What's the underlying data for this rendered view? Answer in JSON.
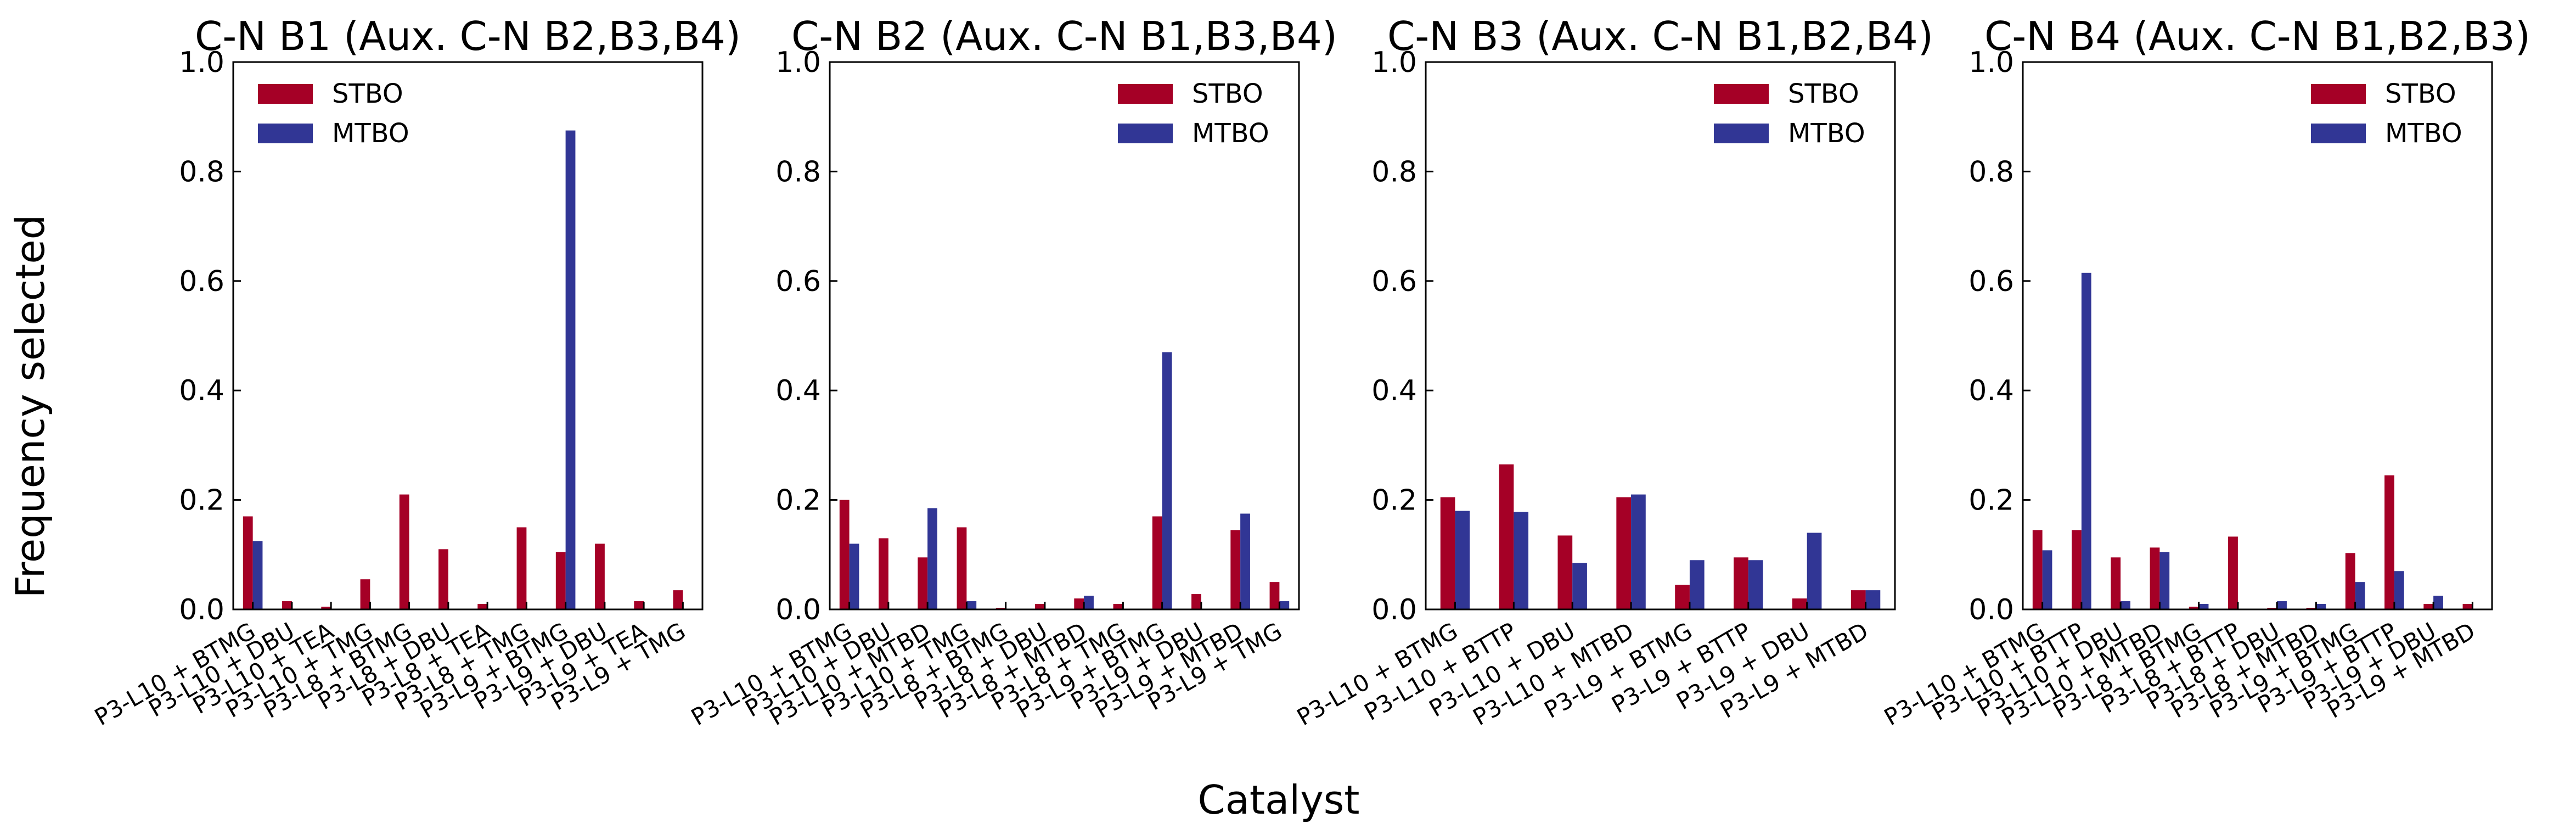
{
  "figure": {
    "ylabel": "Frequency selected",
    "xlabel": "Catalyst"
  },
  "colors": {
    "STBO": "#a50026",
    "MTBO": "#313695"
  },
  "chart_data": [
    {
      "type": "bar",
      "title": "C-N B1 (Aux. C-N B2,B3,B4)",
      "ylim": [
        0,
        1.0
      ],
      "yticks": [
        "0.0",
        "0.2",
        "0.4",
        "0.6",
        "0.8",
        "1.0"
      ],
      "legend_position": "top-left",
      "categories": [
        "P3-L10 + BTMG",
        "P3-L10 + DBU",
        "P3-L10 + TEA",
        "P3-L10 + TMG",
        "P3-L8 + BTMG",
        "P3-L8 + DBU",
        "P3-L8 + TEA",
        "P3-L8 + TMG",
        "P3-L9 + BTMG",
        "P3-L9 + DBU",
        "P3-L9 + TEA",
        "P3-L9 + TMG"
      ],
      "series": [
        {
          "name": "STBO",
          "values": [
            0.17,
            0.015,
            0.005,
            0.055,
            0.21,
            0.11,
            0.01,
            0.15,
            0.105,
            0.12,
            0.015,
            0.035
          ]
        },
        {
          "name": "MTBO",
          "values": [
            0.125,
            0.0,
            0.0,
            0.0,
            0.0,
            0.0,
            0.0,
            0.0,
            0.875,
            0.0,
            0.0,
            0.0
          ]
        }
      ]
    },
    {
      "type": "bar",
      "title": "C-N B2 (Aux. C-N B1,B3,B4)",
      "ylim": [
        0,
        1.0
      ],
      "yticks": [
        "0.0",
        "0.2",
        "0.4",
        "0.6",
        "0.8",
        "1.0"
      ],
      "legend_position": "top-right",
      "categories": [
        "P3-L10 + BTMG",
        "P3-L10 + DBU",
        "P3-L10 + MTBD",
        "P3-L10 + TMG",
        "P3-L8 + BTMG",
        "P3-L8 + DBU",
        "P3-L8 + MTBD",
        "P3-L8 + TMG",
        "P3-L9 + BTMG",
        "P3-L9 + DBU",
        "P3-L9 + MTBD",
        "P3-L9 + TMG"
      ],
      "series": [
        {
          "name": "STBO",
          "values": [
            0.2,
            0.13,
            0.095,
            0.15,
            0.003,
            0.01,
            0.02,
            0.01,
            0.17,
            0.028,
            0.145,
            0.05
          ]
        },
        {
          "name": "MTBO",
          "values": [
            0.12,
            0.0,
            0.185,
            0.015,
            0.0,
            0.0,
            0.025,
            0.0,
            0.47,
            0.0,
            0.175,
            0.015
          ]
        }
      ]
    },
    {
      "type": "bar",
      "title": "C-N B3 (Aux. C-N B1,B2,B4)",
      "ylim": [
        0,
        1.0
      ],
      "yticks": [
        "0.0",
        "0.2",
        "0.4",
        "0.6",
        "0.8",
        "1.0"
      ],
      "legend_position": "top-right",
      "categories": [
        "P3-L10 + BTMG",
        "P3-L10 + BTTP",
        "P3-L10 + DBU",
        "P3-L10 + MTBD",
        "P3-L9 + BTMG",
        "P3-L9 + BTTP",
        "P3-L9 + DBU",
        "P3-L9 + MTBD"
      ],
      "series": [
        {
          "name": "STBO",
          "values": [
            0.205,
            0.265,
            0.135,
            0.205,
            0.045,
            0.095,
            0.02,
            0.035
          ]
        },
        {
          "name": "MTBO",
          "values": [
            0.18,
            0.178,
            0.085,
            0.21,
            0.09,
            0.09,
            0.14,
            0.035
          ]
        }
      ]
    },
    {
      "type": "bar",
      "title": "C-N B4 (Aux. C-N B1,B2,B3)",
      "ylim": [
        0,
        1.0
      ],
      "yticks": [
        "0.0",
        "0.2",
        "0.4",
        "0.6",
        "0.8",
        "1.0"
      ],
      "legend_position": "top-right",
      "categories": [
        "P3-L10 + BTMG",
        "P3-L10 + BTTP",
        "P3-L10 + DBU",
        "P3-L10 + MTBD",
        "P3-L8 + BTMG",
        "P3-L8 + BTTP",
        "P3-L8 + DBU",
        "P3-L8 + MTBD",
        "P3-L9 + BTMG",
        "P3-L9 + BTTP",
        "P3-L9 + DBU",
        "P3-L9 + MTBD"
      ],
      "series": [
        {
          "name": "STBO",
          "values": [
            0.145,
            0.145,
            0.095,
            0.113,
            0.005,
            0.133,
            0.003,
            0.003,
            0.103,
            0.245,
            0.01,
            0.01
          ]
        },
        {
          "name": "MTBO",
          "values": [
            0.108,
            0.615,
            0.015,
            0.105,
            0.01,
            0.0,
            0.015,
            0.01,
            0.05,
            0.07,
            0.025,
            0.0
          ]
        }
      ]
    }
  ]
}
